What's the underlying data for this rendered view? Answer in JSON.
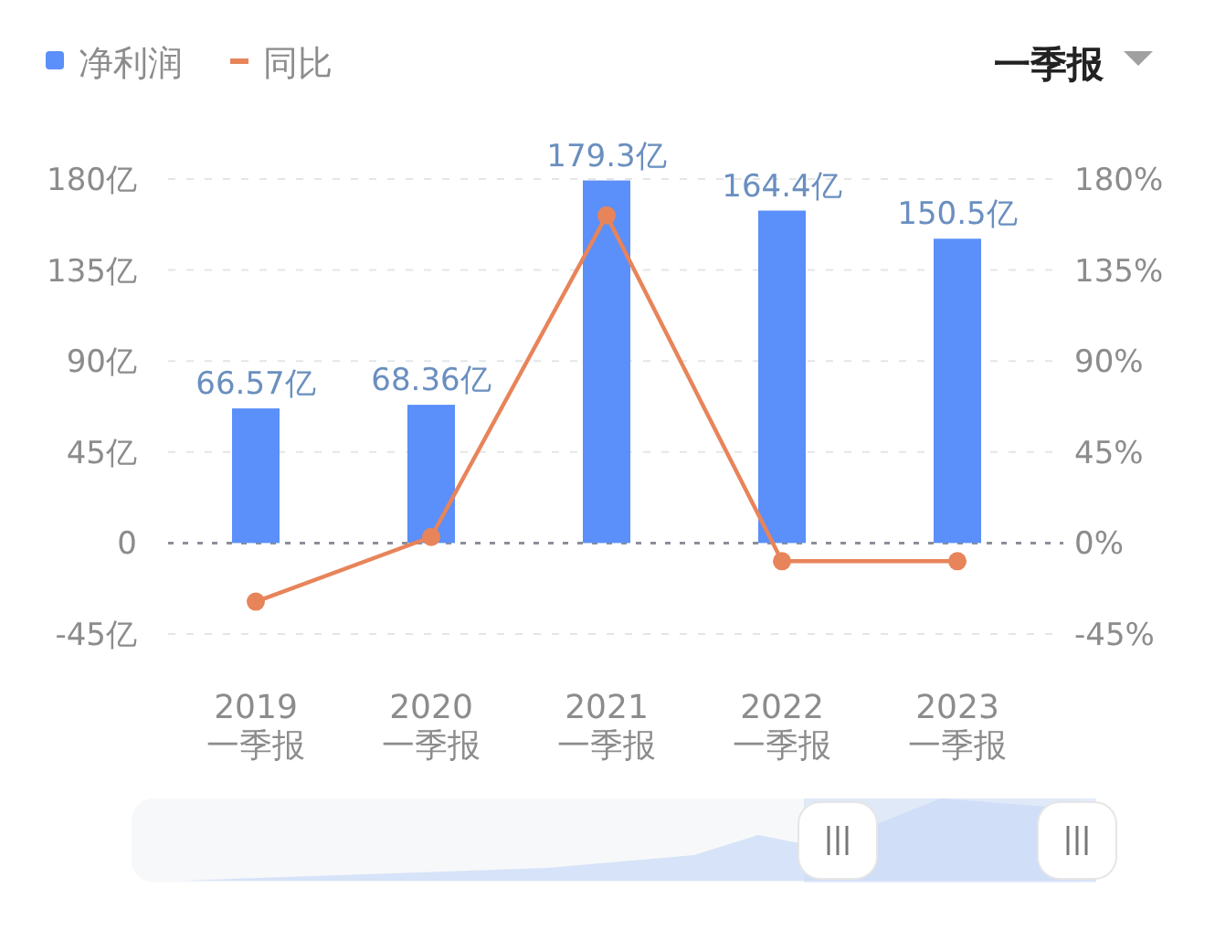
{
  "chart_data": {
    "type": "bar",
    "categories": [
      "2019\n一季报",
      "2020\n一季报",
      "2021\n一季报",
      "2022\n一季报",
      "2023\n一季报"
    ],
    "series": [
      {
        "name": "净利润",
        "color": "#5b8ff9",
        "values": [
          66.57,
          68.36,
          179.3,
          164.4,
          150.5
        ],
        "value_labels": [
          "66.57亿",
          "68.36亿",
          "179.3亿",
          "164.4亿",
          "150.5亿"
        ]
      },
      {
        "name": "同比",
        "type": "line",
        "axis": "y2",
        "color": "#e8845a",
        "marker": "circle",
        "values": [
          -29,
          3,
          162,
          -9,
          -9
        ]
      }
    ],
    "ylim": [
      -45,
      180
    ],
    "yticks": [
      {
        "value": -45,
        "label": "-45亿"
      },
      0,
      {
        "value": 45,
        "label": "45亿"
      },
      {
        "value": 90,
        "label": "90亿"
      },
      {
        "value": 135,
        "label": "135亿"
      },
      {
        "value": 180,
        "label": "180亿"
      }
    ],
    "y2lim": [
      -45,
      180
    ],
    "y2ticks": [
      {
        "value": -45,
        "label": "-45%"
      },
      {
        "value": 0,
        "label": "0%"
      },
      {
        "value": 45,
        "label": "45%"
      },
      {
        "value": 90,
        "label": "90%"
      },
      {
        "value": 135,
        "label": "135%"
      },
      {
        "value": 180,
        "label": "180%"
      }
    ],
    "grid": "y",
    "ref_lines": [
      {
        "axis": "y",
        "value": 0,
        "color": "#8a8f99",
        "line_style": "dotted"
      }
    ],
    "legend": "top left",
    "annotations": [
      "一季报"
    ]
  }
}
